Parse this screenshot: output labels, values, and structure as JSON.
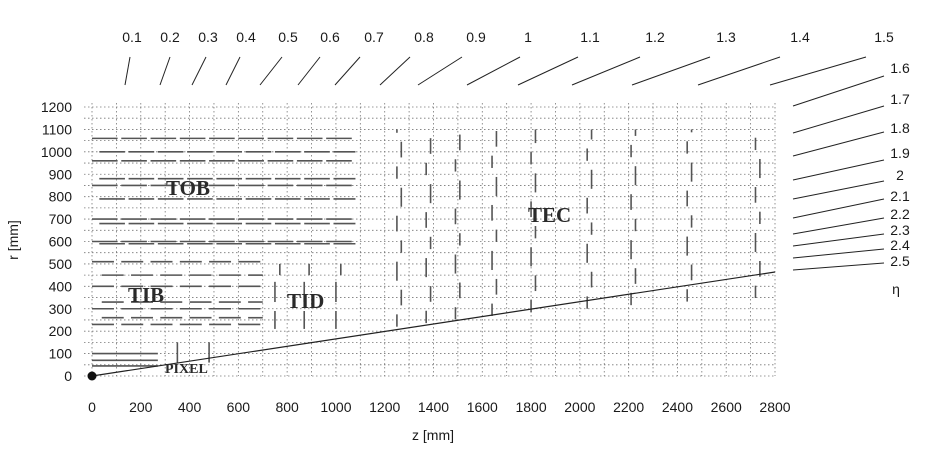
{
  "diagram": {
    "x_axis": {
      "label": "z [mm]",
      "ticks": [
        "0",
        "200",
        "400",
        "600",
        "800",
        "1000",
        "1200",
        "1400",
        "1600",
        "1800",
        "2000",
        "2200",
        "2400",
        "2600",
        "2800"
      ],
      "range": [
        0,
        2800
      ]
    },
    "y_axis": {
      "label": "r [mm]",
      "ticks": [
        "0",
        "100",
        "200",
        "300",
        "400",
        "500",
        "600",
        "700",
        "800",
        "900",
        "1000",
        "1100",
        "1200"
      ],
      "range": [
        0,
        1200
      ]
    },
    "eta_symbol": "η",
    "eta_top": [
      "0.1",
      "0.2",
      "0.3",
      "0.4",
      "0.5",
      "0.6",
      "0.7",
      "0.8",
      "0.9",
      "1",
      "1.1",
      "1.2",
      "1.3",
      "1.4",
      "1.5"
    ],
    "eta_right": [
      "1.6",
      "1.7",
      "1.8",
      "1.9",
      "2",
      "2.1",
      "2.2",
      "2.3",
      "2.4",
      "2.5"
    ],
    "regions": {
      "tob": "TOB",
      "tib": "TIB",
      "tid": "TID",
      "tec": "TEC",
      "pixel": "PIXEL"
    }
  }
}
